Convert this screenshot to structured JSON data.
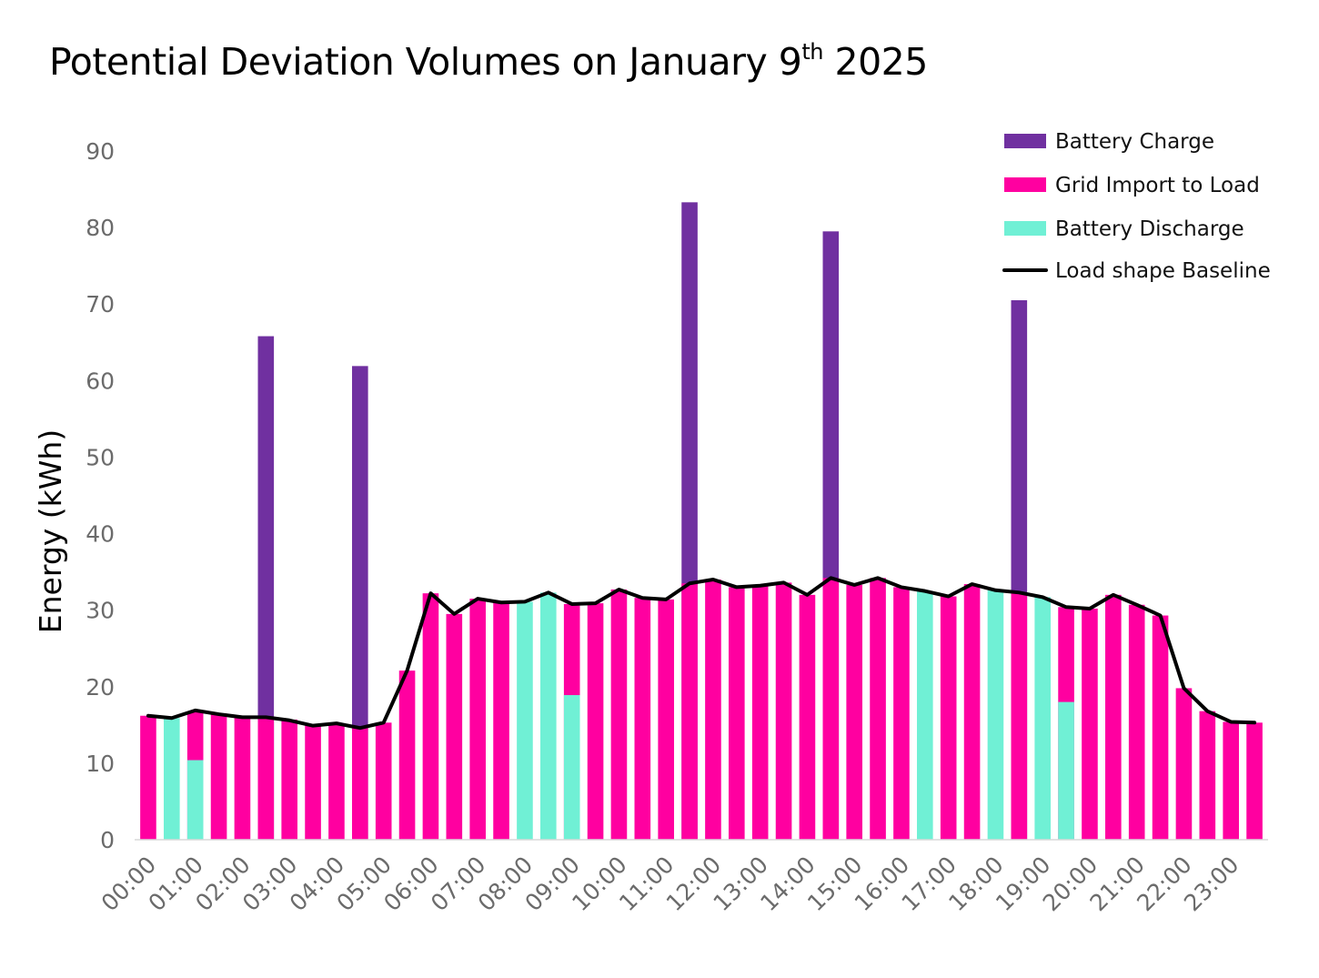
{
  "chart_data": {
    "type": "bar",
    "title": "Potential Deviation Volumes on January 9",
    "title_superscript": "th",
    "title_suffix": " 2025",
    "ylabel": "Energy (kWh)",
    "xlabel": "",
    "ylim": [
      0,
      90
    ],
    "yticks": [
      0,
      10,
      20,
      30,
      40,
      50,
      60,
      70,
      80,
      90
    ],
    "x_tick_labels": [
      "00:00",
      "01:00",
      "02:00",
      "03:00",
      "04:00",
      "05:00",
      "06:00",
      "07:00",
      "08:00",
      "09:00",
      "10:00",
      "11:00",
      "12:00",
      "13:00",
      "14:00",
      "15:00",
      "16:00",
      "17:00",
      "18:00",
      "19:00",
      "20:00",
      "21:00",
      "22:00",
      "23:00"
    ],
    "categories": [
      "00:00",
      "00:30",
      "01:00",
      "01:30",
      "02:00",
      "02:30",
      "03:00",
      "03:30",
      "04:00",
      "04:30",
      "05:00",
      "05:30",
      "06:00",
      "06:30",
      "07:00",
      "07:30",
      "08:00",
      "08:30",
      "09:00",
      "09:30",
      "10:00",
      "10:30",
      "11:00",
      "11:30",
      "12:00",
      "12:30",
      "13:00",
      "13:30",
      "14:00",
      "14:30",
      "15:00",
      "15:30",
      "16:00",
      "16:30",
      "17:00",
      "17:30",
      "18:00",
      "18:30",
      "19:00",
      "19:30",
      "20:00",
      "20:30",
      "21:00",
      "21:30",
      "22:00",
      "22:30",
      "23:00",
      "23:30"
    ],
    "legend_position": "top-right",
    "grid": false,
    "series": [
      {
        "name": "Battery Charge",
        "kind": "bar",
        "color": "#7030a0",
        "values": [
          0,
          0,
          0,
          0,
          0,
          65.8,
          0,
          0,
          0,
          61.9,
          0,
          0,
          0,
          0,
          0,
          0,
          0,
          0,
          0,
          0,
          0,
          0,
          0,
          83.3,
          0,
          0,
          0,
          0,
          0,
          79.5,
          0,
          0,
          0,
          0,
          0,
          0,
          0,
          70.5,
          0,
          0,
          0,
          0,
          0,
          0,
          0,
          0,
          0,
          0
        ]
      },
      {
        "name": "Grid Import to Load",
        "kind": "bar",
        "color": "#ff00a0",
        "values": [
          16.2,
          0,
          16.8,
          16.5,
          16.0,
          16.0,
          15.7,
          15.0,
          15.2,
          14.6,
          15.3,
          22.1,
          32.2,
          29.5,
          31.5,
          31.0,
          0,
          0,
          30.8,
          30.9,
          32.7,
          31.6,
          31.4,
          33.5,
          34.0,
          33.0,
          33.2,
          33.6,
          32.0,
          34.2,
          33.3,
          34.2,
          33.0,
          0,
          31.8,
          33.4,
          0,
          32.3,
          0,
          30.4,
          30.2,
          32.0,
          30.7,
          29.3,
          19.8,
          16.8,
          15.4,
          15.3
        ]
      },
      {
        "name": "Battery Discharge",
        "kind": "bar",
        "color": "#70f0d5",
        "values": [
          0,
          15.9,
          10.4,
          0,
          0,
          0,
          0,
          0,
          0,
          0,
          0,
          0,
          0,
          0,
          0,
          0,
          31.1,
          32.3,
          18.9,
          0,
          0,
          0,
          0,
          0,
          0,
          0,
          0,
          0,
          0,
          0,
          0,
          0,
          0,
          32.5,
          0,
          0,
          32.6,
          0,
          31.7,
          18.0,
          0,
          0,
          0,
          0,
          0,
          0,
          0,
          0
        ]
      },
      {
        "name": "Load shape Baseline",
        "kind": "line",
        "color": "#000000",
        "values": [
          16.2,
          15.9,
          16.9,
          16.4,
          16.0,
          16.0,
          15.6,
          14.9,
          15.2,
          14.6,
          15.3,
          22.1,
          32.2,
          29.5,
          31.5,
          31.0,
          31.1,
          32.3,
          30.8,
          30.9,
          32.7,
          31.6,
          31.4,
          33.5,
          34.0,
          33.0,
          33.2,
          33.6,
          32.0,
          34.2,
          33.3,
          34.2,
          33.0,
          32.5,
          31.8,
          33.4,
          32.6,
          32.3,
          31.7,
          30.4,
          30.2,
          32.0,
          30.7,
          29.3,
          19.8,
          16.8,
          15.4,
          15.3
        ]
      }
    ]
  }
}
